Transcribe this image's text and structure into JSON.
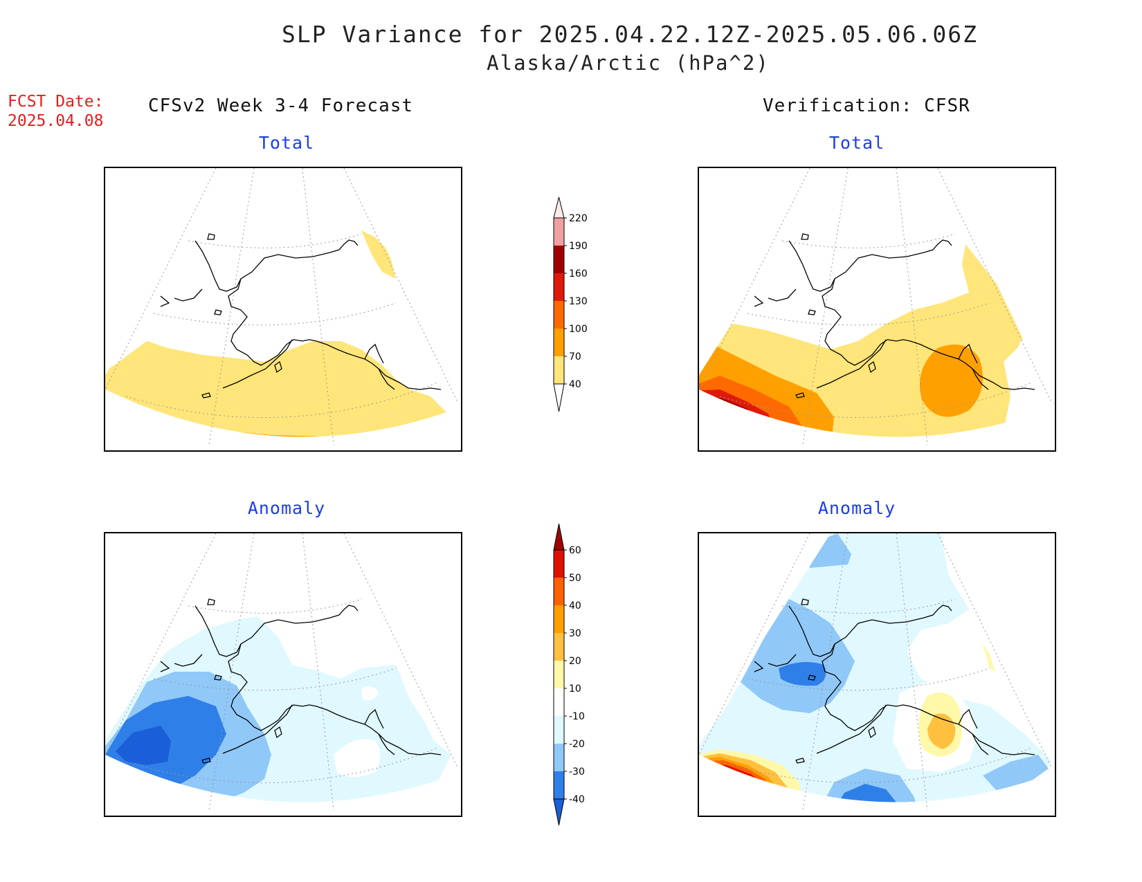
{
  "header": {
    "title": "SLP Variance for 2025.04.22.12Z-2025.05.06.06Z",
    "subtitle": "Alaska/Arctic (hPa^2)",
    "fcst_label": "FCST Date:",
    "fcst_date": "2025.04.08"
  },
  "columns": {
    "left": "CFSv2 Week 3-4 Forecast",
    "right": "Verification: CFSR"
  },
  "panels": {
    "forecast_total": "Total",
    "verification_total": "Total",
    "forecast_anomaly": "Anomaly",
    "verification_anomaly": "Anomaly"
  },
  "colorbars": {
    "total": {
      "levels": [
        "40",
        "70",
        "100",
        "130",
        "160",
        "190",
        "220"
      ],
      "colors": [
        "#ffe57a",
        "#ffa000",
        "#ff6a00",
        "#e01a0a",
        "#a00000",
        "#f0a0a0",
        "#ffe8e8"
      ]
    },
    "anomaly": {
      "levels": [
        "-40",
        "-30",
        "-20",
        "-10",
        "10",
        "20",
        "30",
        "40",
        "50",
        "60"
      ],
      "colors": [
        "#1a5fd8",
        "#2f7fe8",
        "#90c8f8",
        "#e0f8ff",
        "#ffffff",
        "#fff8a8",
        "#ffc040",
        "#ffa000",
        "#ff6000",
        "#e01000",
        "#a00000"
      ]
    }
  },
  "fill_colors": {
    "lightyellow": "#ffe57a",
    "orange": "#ffa000",
    "darkorange": "#ff6a00",
    "red": "#e01a0a",
    "darkred": "#a00000",
    "palecyan": "#e0f8ff",
    "lightblue": "#90c8f8",
    "blue": "#2f7fe8",
    "darkblue": "#1a5fd8",
    "paleyellow": "#fff8a8",
    "lightorange": "#ffc040"
  }
}
